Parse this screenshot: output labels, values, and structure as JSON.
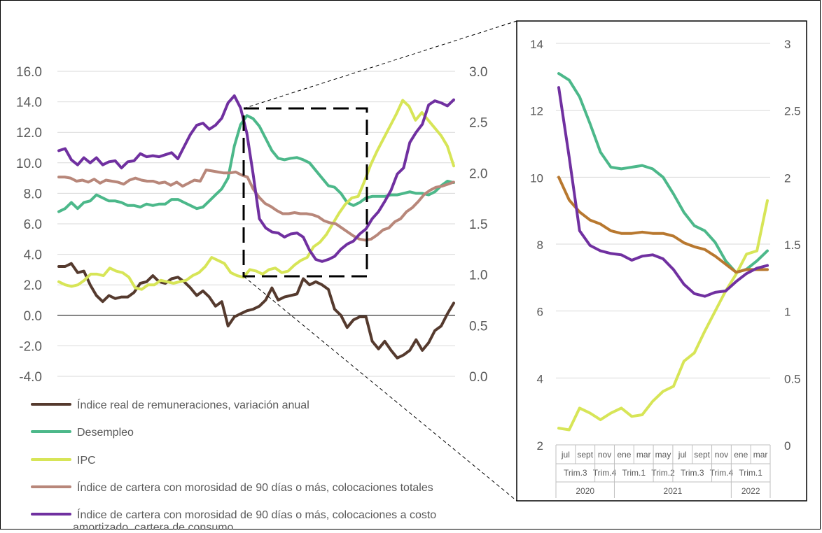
{
  "chart_data": [
    {
      "type": "line",
      "title": "",
      "ylim": [
        -4,
        16
      ],
      "y2lim": [
        0,
        3
      ],
      "ytick_labels": [
        "-4.0",
        "-2.0",
        "0.0",
        "2.0",
        "4.0",
        "6.0",
        "8.0",
        "10.0",
        "12.0",
        "14.0",
        "16.0"
      ],
      "y2tick_labels": [
        "0.0",
        "0.5",
        "1.0",
        "1.5",
        "2.0",
        "2.5",
        "3.0"
      ],
      "grid": true,
      "legend_position": "bottom",
      "series": [
        {
          "name": "Índice real de remuneraciones, variación anual",
          "color": "#553A2E",
          "axis": "left",
          "values": [
            3.2,
            3.2,
            3.4,
            2.8,
            2.9,
            2.0,
            1.3,
            0.9,
            1.3,
            1.1,
            1.2,
            1.2,
            1.5,
            2.1,
            2.2,
            2.6,
            2.2,
            2.1,
            2.4,
            2.5,
            2.2,
            1.8,
            1.3,
            1.6,
            1.2,
            0.6,
            0.9,
            -0.7,
            -0.1,
            0.1,
            0.3,
            0.4,
            0.6,
            1.0,
            1.8,
            1.0,
            1.2,
            1.3,
            1.4,
            2.4,
            2.0,
            2.2,
            2.0,
            1.7,
            0.4,
            0.0,
            -0.8,
            -0.3,
            -0.1,
            -0.1,
            -1.7,
            -2.2,
            -1.7,
            -2.3,
            -2.8,
            -2.6,
            -2.3,
            -1.6,
            -2.3,
            -1.8,
            -1.0,
            -0.7,
            0.1,
            0.8
          ]
        },
        {
          "name": "Desempleo",
          "color": "#4CB88A",
          "axis": "left",
          "values": [
            6.8,
            7.0,
            7.4,
            7.0,
            7.4,
            7.5,
            7.9,
            7.7,
            7.5,
            7.5,
            7.4,
            7.2,
            7.2,
            7.1,
            7.3,
            7.2,
            7.3,
            7.3,
            7.6,
            7.6,
            7.4,
            7.2,
            7.0,
            7.1,
            7.5,
            7.9,
            8.3,
            9.0,
            11.1,
            12.5,
            13.1,
            12.9,
            12.4,
            11.6,
            10.8,
            10.3,
            10.2,
            10.3,
            10.35,
            10.2,
            10.0,
            9.5,
            9.0,
            8.5,
            8.4,
            8.0,
            7.4,
            7.2,
            7.4,
            7.7,
            7.8,
            7.8,
            7.8,
            7.9,
            7.9,
            8.0,
            8.1,
            8.0,
            8.0,
            7.9,
            8.1,
            8.5,
            8.8,
            8.7
          ]
        },
        {
          "name": "IPC",
          "color": "#D7E557",
          "axis": "left",
          "values": [
            2.2,
            2.0,
            1.9,
            2.0,
            2.3,
            2.7,
            2.7,
            2.6,
            3.1,
            2.9,
            2.8,
            2.5,
            1.8,
            1.7,
            2.0,
            2.0,
            2.3,
            2.2,
            2.1,
            2.2,
            2.3,
            2.6,
            2.8,
            3.2,
            3.8,
            3.6,
            3.4,
            2.8,
            2.6,
            2.5,
            3.0,
            2.9,
            2.7,
            3.0,
            3.1,
            2.8,
            2.9,
            3.3,
            3.6,
            3.8,
            4.5,
            4.8,
            5.3,
            6.0,
            6.7,
            7.3,
            7.7,
            7.8,
            8.8,
            9.9,
            10.8,
            11.6,
            12.4,
            13.2,
            14.1,
            13.7,
            12.8,
            13.3,
            12.8,
            12.3,
            11.8,
            11.1,
            9.8
          ]
        },
        {
          "name": "Índice de cartera con morosidad de 90 días o más, colocaciones totales",
          "color": "#B8877A",
          "axis": "right",
          "values": [
            1.96,
            1.96,
            1.95,
            1.92,
            1.93,
            1.91,
            1.94,
            1.9,
            1.93,
            1.92,
            1.91,
            1.89,
            1.93,
            1.95,
            1.93,
            1.92,
            1.92,
            1.9,
            1.91,
            1.88,
            1.91,
            1.87,
            1.9,
            1.93,
            1.92,
            2.03,
            2.02,
            2.01,
            2.0,
            2.0,
            2.01,
            1.98,
            1.96,
            1.84,
            1.76,
            1.7,
            1.67,
            1.63,
            1.6,
            1.6,
            1.61,
            1.6,
            1.6,
            1.59,
            1.57,
            1.53,
            1.51,
            1.5,
            1.46,
            1.42,
            1.38,
            1.35,
            1.34,
            1.35,
            1.39,
            1.44,
            1.46,
            1.52,
            1.55,
            1.62,
            1.66,
            1.72,
            1.79,
            1.83,
            1.86,
            1.87,
            1.89,
            1.91
          ]
        },
        {
          "name": "Índice de cartera con morosidad de 90 días o más, colocaciones a costo amortizado, cartera de consumo",
          "color": "#7030A0",
          "axis": "right",
          "values": [
            2.22,
            2.24,
            2.13,
            2.08,
            2.15,
            2.1,
            2.15,
            2.08,
            2.11,
            2.12,
            2.05,
            2.11,
            2.12,
            2.19,
            2.16,
            2.17,
            2.16,
            2.18,
            2.2,
            2.14,
            2.26,
            2.38,
            2.47,
            2.49,
            2.43,
            2.47,
            2.54,
            2.69,
            2.76,
            2.64,
            2.39,
            1.99,
            1.55,
            1.46,
            1.42,
            1.41,
            1.37,
            1.4,
            1.41,
            1.37,
            1.24,
            1.15,
            1.13,
            1.15,
            1.18,
            1.25,
            1.3,
            1.33,
            1.4,
            1.45,
            1.55,
            1.62,
            1.72,
            1.83,
            1.99,
            2.05,
            2.3,
            2.4,
            2.48,
            2.67,
            2.71,
            2.69,
            2.66,
            2.72
          ]
        }
      ]
    },
    {
      "type": "line",
      "title": "",
      "ylim": [
        2,
        14
      ],
      "y2lim": [
        0,
        3
      ],
      "ytick_labels": [
        "2",
        "4",
        "6",
        "8",
        "10",
        "12",
        "14"
      ],
      "y2tick_labels": [
        "0",
        "0.5",
        "1",
        "1.5",
        "2",
        "2.5",
        "3"
      ],
      "grid": true,
      "x_month_labels": [
        "jul",
        "sept",
        "nov",
        "ene",
        "mar",
        "may",
        "jul",
        "sept",
        "nov",
        "ene",
        "mar"
      ],
      "x_quarter_labels": [
        "Trim.3",
        "Trim.4",
        "Trim.1",
        "Trim.2",
        "Trim.3",
        "Trim.4",
        "Trim.1"
      ],
      "x_year_labels": [
        "2020",
        "2021",
        "2022"
      ],
      "series": [
        {
          "name": "Desempleo",
          "color": "#4CB88A",
          "axis": "left",
          "values": [
            13.1,
            12.9,
            12.4,
            11.6,
            10.75,
            10.3,
            10.25,
            10.3,
            10.35,
            10.25,
            10.0,
            9.5,
            8.95,
            8.55,
            8.4,
            8.05,
            7.5,
            7.15,
            7.25,
            7.5,
            7.8
          ]
        },
        {
          "name": "IPC",
          "color": "#D7E557",
          "axis": "left",
          "values": [
            2.5,
            2.45,
            3.1,
            2.95,
            2.75,
            2.95,
            3.1,
            2.85,
            2.9,
            3.3,
            3.6,
            3.75,
            4.5,
            4.75,
            5.4,
            6.0,
            6.6,
            7.1,
            7.7,
            7.8,
            9.3
          ]
        },
        {
          "name": "Índice de cartera con morosidad de 90 días o más, colocaciones totales",
          "color": "#B8782F",
          "axis": "right",
          "values": [
            2.0,
            1.83,
            1.74,
            1.68,
            1.65,
            1.6,
            1.58,
            1.58,
            1.59,
            1.58,
            1.58,
            1.56,
            1.51,
            1.48,
            1.46,
            1.41,
            1.35,
            1.29,
            1.31,
            1.31,
            1.31
          ]
        },
        {
          "name": "Índice de cartera con morosidad de 90 días o más, colocaciones a costo amortizado, cartera de consumo",
          "color": "#7030A0",
          "axis": "right",
          "values": [
            2.67,
            2.15,
            1.6,
            1.49,
            1.45,
            1.43,
            1.42,
            1.38,
            1.41,
            1.42,
            1.39,
            1.31,
            1.2,
            1.13,
            1.11,
            1.14,
            1.15,
            1.22,
            1.28,
            1.32,
            1.34
          ]
        }
      ]
    }
  ]
}
